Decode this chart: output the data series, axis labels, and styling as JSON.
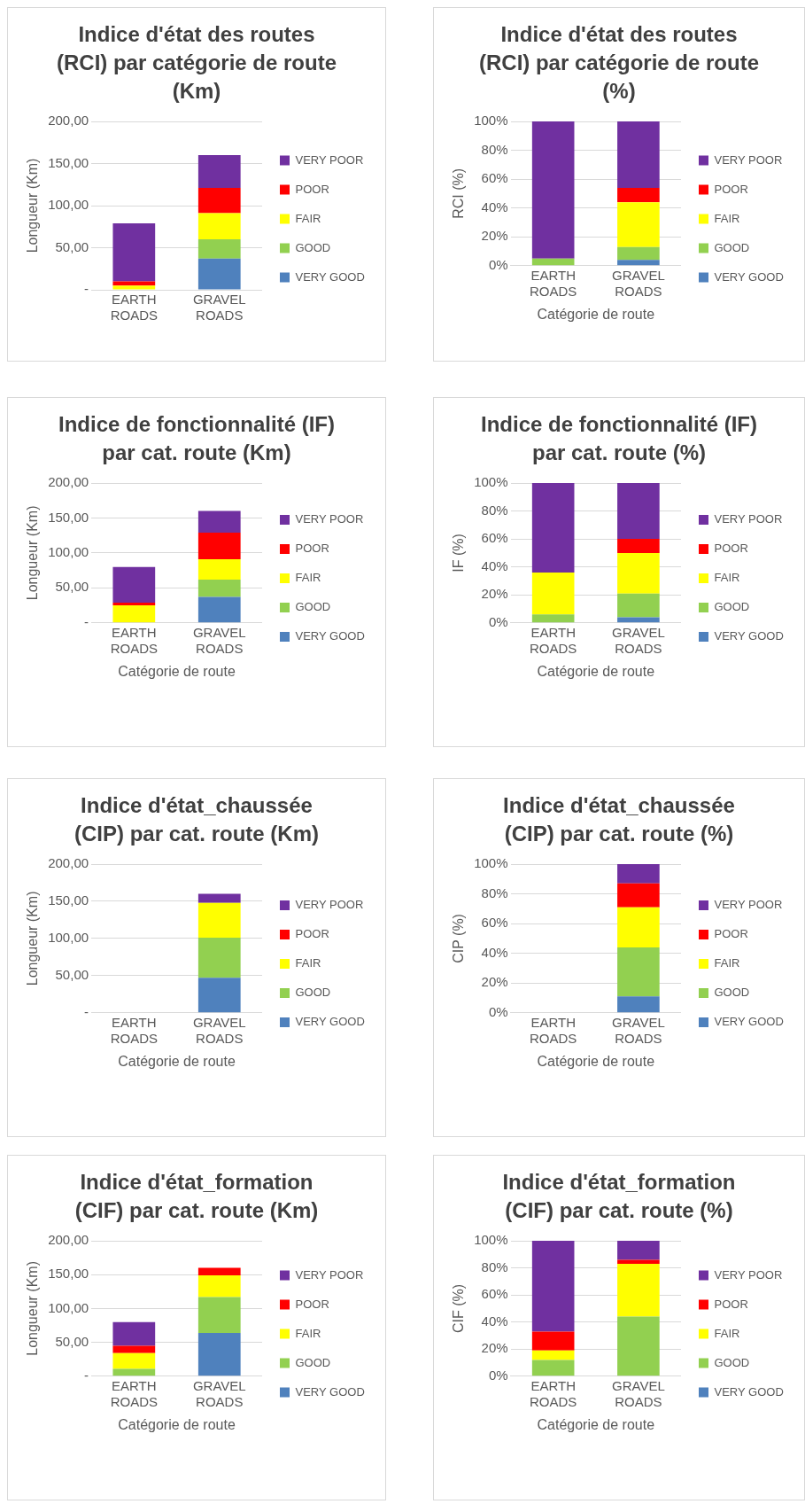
{
  "chart_data": [
    {
      "type": "bar",
      "stacked": true,
      "title": "Indice d'état des routes (RCI) par catégorie de route (Km)",
      "ylabel": "Longueur (Km)",
      "categories": [
        "EARTH ROADS",
        "GRAVEL ROADS"
      ],
      "ylim": [
        0,
        200
      ],
      "yticks": [
        {
          "value": 0,
          "label": "-"
        },
        {
          "value": 50,
          "label": "50,00"
        },
        {
          "value": 100,
          "label": "100,00"
        },
        {
          "value": 150,
          "label": "150,00"
        },
        {
          "value": 200,
          "label": "200,00"
        }
      ],
      "grid": "y",
      "legend": "right",
      "series": [
        {
          "name": "VERY GOOD",
          "color": "#4f81bd",
          "values": [
            0,
            37
          ]
        },
        {
          "name": "GOOD",
          "color": "#92d050",
          "values": [
            0,
            23
          ]
        },
        {
          "name": "FAIR",
          "color": "#ffff00",
          "values": [
            5,
            31
          ]
        },
        {
          "name": "POOR",
          "color": "#ff0000",
          "values": [
            5,
            30
          ]
        },
        {
          "name": "VERY POOR",
          "color": "#7030a0",
          "values": [
            69,
            39
          ]
        }
      ]
    },
    {
      "type": "bar",
      "stacked": true,
      "title": "Indice d'état des routes (RCI) par catégorie de route (%)",
      "ylabel": "RCI (%)",
      "xlabel": "Catégorie de route",
      "categories": [
        "EARTH ROADS",
        "GRAVEL ROADS"
      ],
      "ylim": [
        0,
        100
      ],
      "yticks": [
        {
          "value": 0,
          "label": "0%"
        },
        {
          "value": 20,
          "label": "20%"
        },
        {
          "value": 40,
          "label": "40%"
        },
        {
          "value": 60,
          "label": "60%"
        },
        {
          "value": 80,
          "label": "80%"
        },
        {
          "value": 100,
          "label": "100%"
        }
      ],
      "grid": "y",
      "legend": "right",
      "series": [
        {
          "name": "VERY GOOD",
          "color": "#4f81bd",
          "values": [
            0,
            4
          ]
        },
        {
          "name": "GOOD",
          "color": "#92d050",
          "values": [
            5,
            9
          ]
        },
        {
          "name": "FAIR",
          "color": "#ffff00",
          "values": [
            0,
            31
          ]
        },
        {
          "name": "POOR",
          "color": "#ff0000",
          "values": [
            0,
            10
          ]
        },
        {
          "name": "VERY POOR",
          "color": "#7030a0",
          "values": [
            95,
            46
          ]
        }
      ]
    },
    {
      "type": "bar",
      "stacked": true,
      "title": "Indice de fonctionnalité (IF) par cat. route (Km)",
      "ylabel": "Longueur (Km)",
      "xlabel": "Catégorie de route",
      "categories": [
        "EARTH ROADS",
        "GRAVEL ROADS"
      ],
      "ylim": [
        0,
        200
      ],
      "yticks": [
        {
          "value": 0,
          "label": "-"
        },
        {
          "value": 50,
          "label": "50,00"
        },
        {
          "value": 100,
          "label": "100,00"
        },
        {
          "value": 150,
          "label": "150,00"
        },
        {
          "value": 200,
          "label": "200,00"
        }
      ],
      "grid": "y",
      "legend": "right",
      "series": [
        {
          "name": "VERY GOOD",
          "color": "#4f81bd",
          "values": [
            0,
            37
          ]
        },
        {
          "name": "GOOD",
          "color": "#92d050",
          "values": [
            0,
            25
          ]
        },
        {
          "name": "FAIR",
          "color": "#ffff00",
          "values": [
            25,
            29
          ]
        },
        {
          "name": "POOR",
          "color": "#ff0000",
          "values": [
            4,
            38
          ]
        },
        {
          "name": "VERY POOR",
          "color": "#7030a0",
          "values": [
            51,
            31
          ]
        }
      ]
    },
    {
      "type": "bar",
      "stacked": true,
      "title": "Indice de fonctionnalité (IF) par cat. route (%)",
      "ylabel": "IF (%)",
      "xlabel": "Catégorie de route",
      "categories": [
        "EARTH ROADS",
        "GRAVEL ROADS"
      ],
      "ylim": [
        0,
        100
      ],
      "yticks": [
        {
          "value": 0,
          "label": "0%"
        },
        {
          "value": 20,
          "label": "20%"
        },
        {
          "value": 40,
          "label": "40%"
        },
        {
          "value": 60,
          "label": "60%"
        },
        {
          "value": 80,
          "label": "80%"
        },
        {
          "value": 100,
          "label": "100%"
        }
      ],
      "grid": "y",
      "legend": "right",
      "series": [
        {
          "name": "VERY GOOD",
          "color": "#4f81bd",
          "values": [
            0,
            4
          ]
        },
        {
          "name": "GOOD",
          "color": "#92d050",
          "values": [
            6,
            17
          ]
        },
        {
          "name": "FAIR",
          "color": "#ffff00",
          "values": [
            30,
            29
          ]
        },
        {
          "name": "POOR",
          "color": "#ff0000",
          "values": [
            0,
            10
          ]
        },
        {
          "name": "VERY POOR",
          "color": "#7030a0",
          "values": [
            64,
            40
          ]
        }
      ]
    },
    {
      "type": "bar",
      "stacked": true,
      "title": "Indice d'état_chaussée (CIP) par cat. route (Km)",
      "ylabel": "Longueur (Km)",
      "xlabel": "Catégorie de route",
      "categories": [
        "EARTH ROADS",
        "GRAVEL ROADS"
      ],
      "ylim": [
        0,
        200
      ],
      "yticks": [
        {
          "value": 0,
          "label": "-"
        },
        {
          "value": 50,
          "label": "50,00"
        },
        {
          "value": 100,
          "label": "100,00"
        },
        {
          "value": 150,
          "label": "150,00"
        },
        {
          "value": 200,
          "label": "200,00"
        }
      ],
      "grid": "y",
      "legend": "right",
      "series": [
        {
          "name": "VERY GOOD",
          "color": "#4f81bd",
          "values": [
            null,
            47
          ]
        },
        {
          "name": "GOOD",
          "color": "#92d050",
          "values": [
            null,
            54
          ]
        },
        {
          "name": "FAIR",
          "color": "#ffff00",
          "values": [
            null,
            47
          ]
        },
        {
          "name": "POOR",
          "color": "#ff0000",
          "values": [
            null,
            0
          ]
        },
        {
          "name": "VERY POOR",
          "color": "#7030a0",
          "values": [
            null,
            12
          ]
        }
      ]
    },
    {
      "type": "bar",
      "stacked": true,
      "title": "Indice d'état_chaussée (CIP) par cat. route (%)",
      "ylabel": "CIP (%)",
      "xlabel": "Catégorie de route",
      "categories": [
        "EARTH ROADS",
        "GRAVEL ROADS"
      ],
      "ylim": [
        0,
        100
      ],
      "yticks": [
        {
          "value": 0,
          "label": "0%"
        },
        {
          "value": 20,
          "label": "20%"
        },
        {
          "value": 40,
          "label": "40%"
        },
        {
          "value": 60,
          "label": "60%"
        },
        {
          "value": 80,
          "label": "80%"
        },
        {
          "value": 100,
          "label": "100%"
        }
      ],
      "grid": "y",
      "legend": "right",
      "series": [
        {
          "name": "VERY GOOD",
          "color": "#4f81bd",
          "values": [
            null,
            11
          ]
        },
        {
          "name": "GOOD",
          "color": "#92d050",
          "values": [
            null,
            33
          ]
        },
        {
          "name": "FAIR",
          "color": "#ffff00",
          "values": [
            null,
            27
          ]
        },
        {
          "name": "POOR",
          "color": "#ff0000",
          "values": [
            null,
            16
          ]
        },
        {
          "name": "VERY POOR",
          "color": "#7030a0",
          "values": [
            null,
            13
          ]
        }
      ]
    },
    {
      "type": "bar",
      "stacked": true,
      "title": "Indice d'état_formation (CIF) par cat. route (Km)",
      "ylabel": "Longueur (Km)",
      "xlabel": "Catégorie de route",
      "categories": [
        "EARTH ROADS",
        "GRAVEL ROADS"
      ],
      "ylim": [
        0,
        200
      ],
      "yticks": [
        {
          "value": 0,
          "label": "-"
        },
        {
          "value": 50,
          "label": "50,00"
        },
        {
          "value": 100,
          "label": "100,00"
        },
        {
          "value": 150,
          "label": "150,00"
        },
        {
          "value": 200,
          "label": "200,00"
        }
      ],
      "grid": "y",
      "legend": "right",
      "series": [
        {
          "name": "VERY GOOD",
          "color": "#4f81bd",
          "values": [
            0,
            64
          ]
        },
        {
          "name": "GOOD",
          "color": "#92d050",
          "values": [
            11,
            53
          ]
        },
        {
          "name": "FAIR",
          "color": "#ffff00",
          "values": [
            23,
            32
          ]
        },
        {
          "name": "POOR",
          "color": "#ff0000",
          "values": [
            11,
            11
          ]
        },
        {
          "name": "VERY POOR",
          "color": "#7030a0",
          "values": [
            35,
            0
          ]
        }
      ]
    },
    {
      "type": "bar",
      "stacked": true,
      "title": "Indice d'état_formation (CIF) par cat. route (%)",
      "ylabel": "CIF (%)",
      "xlabel": "Catégorie de route",
      "categories": [
        "EARTH ROADS",
        "GRAVEL ROADS"
      ],
      "ylim": [
        0,
        100
      ],
      "yticks": [
        {
          "value": 0,
          "label": "0%"
        },
        {
          "value": 20,
          "label": "20%"
        },
        {
          "value": 40,
          "label": "40%"
        },
        {
          "value": 60,
          "label": "60%"
        },
        {
          "value": 80,
          "label": "80%"
        },
        {
          "value": 100,
          "label": "100%"
        }
      ],
      "grid": "y",
      "legend": "right",
      "series": [
        {
          "name": "VERY GOOD",
          "color": "#4f81bd",
          "values": [
            0,
            0
          ]
        },
        {
          "name": "GOOD",
          "color": "#92d050",
          "values": [
            12,
            44
          ]
        },
        {
          "name": "FAIR",
          "color": "#ffff00",
          "values": [
            7,
            39
          ]
        },
        {
          "name": "POOR",
          "color": "#ff0000",
          "values": [
            14,
            3
          ]
        },
        {
          "name": "VERY POOR",
          "color": "#7030a0",
          "values": [
            67,
            14
          ]
        }
      ]
    }
  ]
}
